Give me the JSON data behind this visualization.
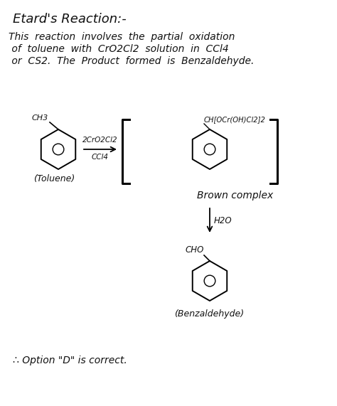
{
  "background_color": "#ffffff",
  "title_text": "Etard's Reaction:-",
  "desc_line1": "This  reaction  involves  the  partial  oxidation",
  "desc_line2": " of  toluene  with  CrO2Cl2  solution  in  CCl4",
  "desc_line3": " or  CS2.  The  Product  formed  is  Benzaldehyde.",
  "reagent_top": "2CrO2Cl2",
  "reagent_bot": "CCl4",
  "brown_label": "CH[OCr(OH)Cl2]2",
  "brown_text": "Brown complex",
  "h2o_text": "H2O",
  "cho_text": "CHO",
  "toluene_label": "(Toluene)",
  "benzaldehyde_label": "(Benzaldehyde)",
  "conclusion": "∴ Option \"D\" is correct.",
  "ch3_text": "CH3",
  "line_color": "#000000",
  "text_color": "#111111"
}
